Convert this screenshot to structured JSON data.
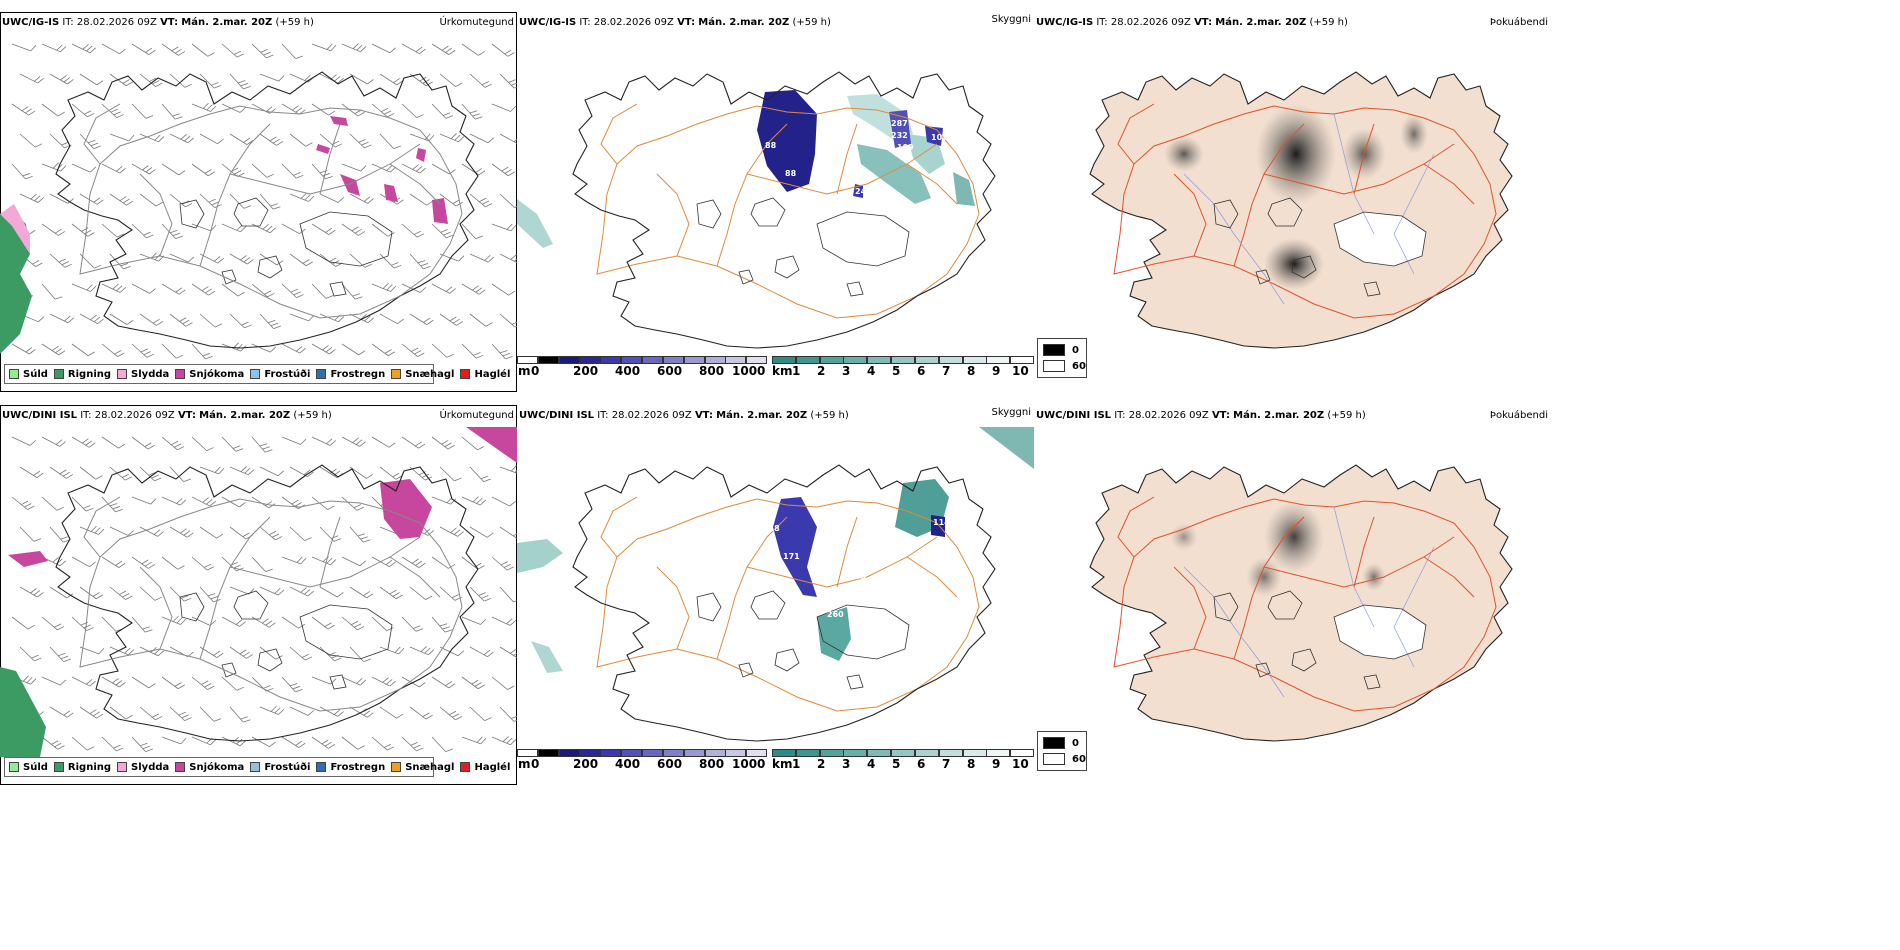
{
  "rows": [
    {
      "model": "UWC/IG-IS",
      "it_label": "IT:",
      "it_value": "28.02.2026 09Z",
      "vt_label": "VT:",
      "vt_value": "Mán. 2.mar. 20Z",
      "lead": "(+59 h)"
    },
    {
      "model": "UWC/DINI ISL",
      "it_label": "IT:",
      "it_value": "28.02.2026 09Z",
      "vt_label": "VT:",
      "vt_value": "Mán. 2.mar. 20Z",
      "lead": "(+59 h)"
    }
  ],
  "panel_titles": {
    "precip": "Úrkomutegund",
    "visibility": "Skyggni",
    "fog": "Þokuábendi"
  },
  "precip_legend": [
    {
      "label": "Súld",
      "color": "#90ee90"
    },
    {
      "label": "Rigning",
      "color": "#3c9a63"
    },
    {
      "label": "Slydda",
      "color": "#f4a8d8"
    },
    {
      "label": "Snjókoma",
      "color": "#c8479e"
    },
    {
      "label": "Frostúði",
      "color": "#8ec2ea"
    },
    {
      "label": "Frostregn",
      "color": "#2f6fb0"
    },
    {
      "label": "Snæhagl",
      "color": "#f0a020"
    },
    {
      "label": "Haglél",
      "color": "#e02020"
    }
  ],
  "height_bar": {
    "unit": "m",
    "ticks": [
      "0",
      "200",
      "400",
      "600",
      "800",
      "1000"
    ],
    "colors": [
      "#ffffff",
      "#000000",
      "#1a1a7a",
      "#28289a",
      "#3a3aae",
      "#5050b8",
      "#6868c0",
      "#8080c8",
      "#9898d2",
      "#b0b0dc",
      "#c8c8e6",
      "#e0e0f0"
    ]
  },
  "visibility_bar": {
    "unit": "km",
    "ticks": [
      "1",
      "2",
      "3",
      "4",
      "5",
      "6",
      "7",
      "8",
      "9",
      "10"
    ],
    "colors": [
      "#2e8b85",
      "#3f958f",
      "#55a29c",
      "#6aaea9",
      "#80bab6",
      "#96c6c3",
      "#acd2d0",
      "#c2dedd",
      "#d8eae9",
      "#eef6f5",
      "#ffffff"
    ]
  },
  "fog_legend": [
    {
      "label": "0",
      "color": "#000000"
    },
    {
      "label": "60",
      "color": "#ffffff"
    }
  ],
  "height_labels_top": [
    "287",
    "232",
    "199",
    "102",
    "88",
    "88",
    "24"
  ],
  "height_labels_bottom": [
    "114",
    "118",
    "171",
    "260",
    "43"
  ],
  "icons": {
    "wind": "wind-barb-icon"
  }
}
